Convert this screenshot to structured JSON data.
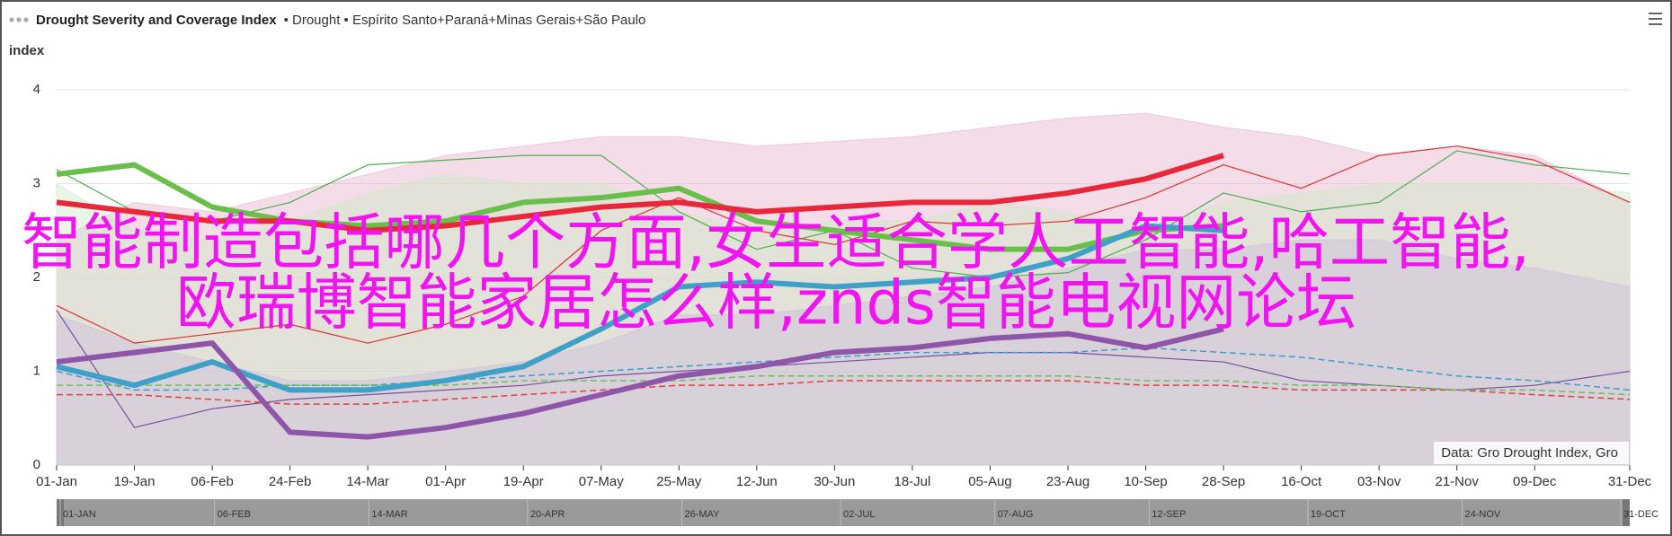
{
  "header": {
    "title": "Drought Severity and Coverage Index",
    "subtitle": "• Drought • Espírito Santo+Paraná+Minas Gerais+São Paulo"
  },
  "overlay": {
    "lines": [
      "智能制造包括哪几个方面,女生适合学人工智能,哈工智能,",
      "欧瑞博智能家居怎么样,znds智能电视网论坛"
    ]
  },
  "chart_data": {
    "type": "line",
    "y_label": "index",
    "credit": "Data: Gro Drought Index, Gro",
    "x": [
      0,
      18,
      36,
      54,
      72,
      90,
      108,
      126,
      144,
      162,
      180,
      198,
      216,
      234,
      252,
      270,
      288,
      306,
      324,
      342,
      364
    ],
    "xlim": [
      0,
      364
    ],
    "xticks": [
      {
        "value": 0,
        "label": "01-Jan"
      },
      {
        "value": 18,
        "label": "19-Jan"
      },
      {
        "value": 36,
        "label": "06-Feb"
      },
      {
        "value": 54,
        "label": "24-Feb"
      },
      {
        "value": 72,
        "label": "14-Mar"
      },
      {
        "value": 90,
        "label": "01-Apr"
      },
      {
        "value": 108,
        "label": "19-Apr"
      },
      {
        "value": 126,
        "label": "07-May"
      },
      {
        "value": 144,
        "label": "25-May"
      },
      {
        "value": 162,
        "label": "12-Jun"
      },
      {
        "value": 180,
        "label": "30-Jun"
      },
      {
        "value": 198,
        "label": "18-Jul"
      },
      {
        "value": 216,
        "label": "05-Aug"
      },
      {
        "value": 234,
        "label": "23-Aug"
      },
      {
        "value": 252,
        "label": "10-Sep"
      },
      {
        "value": 270,
        "label": "28-Sep"
      },
      {
        "value": 288,
        "label": "16-Oct"
      },
      {
        "value": 306,
        "label": "03-Nov"
      },
      {
        "value": 324,
        "label": "21-Nov"
      },
      {
        "value": 342,
        "label": "09-Dec"
      },
      {
        "value": 364,
        "label": "31-Dec"
      }
    ],
    "navigator_ticks": [
      {
        "value": 0,
        "label": "01-JAN"
      },
      {
        "value": 36,
        "label": "06-FEB"
      },
      {
        "value": 72,
        "label": "14-MAR"
      },
      {
        "value": 109,
        "label": "20-APR"
      },
      {
        "value": 145,
        "label": "26-MAY"
      },
      {
        "value": 182,
        "label": "02-JUL"
      },
      {
        "value": 218,
        "label": "07-AUG"
      },
      {
        "value": 254,
        "label": "12-SEP"
      },
      {
        "value": 291,
        "label": "19-OCT"
      },
      {
        "value": 327,
        "label": "24-NOV"
      },
      {
        "value": 364,
        "label": "31-DEC"
      }
    ],
    "ylim": [
      0,
      4
    ],
    "yticks": [
      0,
      1,
      2,
      3,
      4
    ],
    "grid": true,
    "series": [
      {
        "style": "area",
        "color": "#e7b3cc",
        "values": [
          2.4,
          2.8,
          2.7,
          2.9,
          3.1,
          3.3,
          3.4,
          3.5,
          3.5,
          3.4,
          3.45,
          3.5,
          3.6,
          3.7,
          3.75,
          3.6,
          3.5,
          3.3,
          3.4,
          3.3,
          2.8
        ]
      },
      {
        "style": "area",
        "color": "#cfe8c6",
        "values": [
          3.0,
          2.5,
          2.4,
          2.6,
          2.9,
          3.1,
          3.0,
          3.0,
          2.7,
          2.5,
          2.6,
          2.6,
          2.8,
          2.7,
          2.5,
          2.8,
          2.9,
          3.0,
          3.0,
          3.0,
          2.9
        ]
      },
      {
        "style": "area",
        "color": "#c9bcdc",
        "values": [
          1.6,
          1.3,
          1.1,
          0.9,
          0.9,
          1.0,
          1.1,
          1.3,
          1.6,
          1.6,
          1.7,
          1.8,
          1.9,
          2.1,
          2.3,
          2.3,
          2.4,
          2.4,
          2.2,
          2.1,
          1.9
        ]
      },
      {
        "style": "thin",
        "color": "#4caf50",
        "values": [
          3.15,
          2.7,
          2.6,
          2.8,
          3.2,
          3.25,
          3.3,
          3.3,
          2.7,
          2.3,
          2.5,
          2.1,
          2.0,
          2.05,
          2.4,
          2.9,
          2.7,
          2.8,
          3.35,
          3.2,
          3.1
        ]
      },
      {
        "style": "thin",
        "color": "#e03030",
        "values": [
          1.7,
          1.3,
          1.4,
          1.5,
          1.3,
          1.5,
          1.8,
          2.5,
          2.85,
          2.5,
          2.35,
          2.6,
          2.55,
          2.6,
          2.85,
          3.2,
          2.95,
          3.3,
          3.4,
          3.25,
          2.8
        ]
      },
      {
        "style": "thin",
        "color": "#7a4ea0",
        "values": [
          1.65,
          0.4,
          0.6,
          0.7,
          0.75,
          0.8,
          0.85,
          0.95,
          1.0,
          1.05,
          1.1,
          1.15,
          1.2,
          1.2,
          1.15,
          1.1,
          0.9,
          0.85,
          0.8,
          0.85,
          1.0
        ]
      },
      {
        "style": "dashed",
        "color": "#3b9dd0",
        "values": [
          1.0,
          0.8,
          0.8,
          0.85,
          0.85,
          0.9,
          0.95,
          1.0,
          1.05,
          1.1,
          1.15,
          1.2,
          1.2,
          1.2,
          1.25,
          1.2,
          1.15,
          1.05,
          0.95,
          0.9,
          0.8
        ]
      },
      {
        "style": "dashed",
        "color": "#e04040",
        "values": [
          0.75,
          0.75,
          0.7,
          0.65,
          0.65,
          0.7,
          0.75,
          0.8,
          0.85,
          0.85,
          0.9,
          0.9,
          0.9,
          0.9,
          0.85,
          0.85,
          0.8,
          0.8,
          0.8,
          0.75,
          0.7
        ]
      },
      {
        "style": "dashed",
        "color": "#6bbf5a",
        "values": [
          0.85,
          0.85,
          0.85,
          0.85,
          0.85,
          0.85,
          0.9,
          0.9,
          0.9,
          0.95,
          0.95,
          0.95,
          0.95,
          0.95,
          0.9,
          0.9,
          0.85,
          0.85,
          0.8,
          0.8,
          0.75
        ]
      },
      {
        "style": "thick",
        "color": "#6abf4b",
        "values": [
          3.1,
          3.2,
          2.75,
          2.6,
          2.55,
          2.6,
          2.8,
          2.85,
          2.95,
          2.6,
          2.5,
          2.4,
          2.3,
          2.3,
          2.5,
          2.55,
          null,
          null,
          null,
          null,
          null
        ]
      },
      {
        "style": "thick",
        "color": "#3fa0c8",
        "values": [
          1.05,
          0.85,
          1.1,
          0.8,
          0.8,
          0.9,
          1.05,
          1.45,
          1.9,
          1.95,
          1.9,
          1.95,
          2.0,
          2.2,
          2.55,
          2.5,
          null,
          null,
          null,
          null,
          null
        ]
      },
      {
        "style": "thick",
        "color": "#8e55a8",
        "values": [
          1.1,
          1.2,
          1.3,
          0.35,
          0.3,
          0.4,
          0.55,
          0.75,
          0.95,
          1.05,
          1.2,
          1.25,
          1.35,
          1.4,
          1.25,
          1.45,
          null,
          null,
          null,
          null,
          null
        ]
      },
      {
        "style": "thick",
        "color": "#e8283a",
        "values": [
          2.8,
          2.7,
          2.6,
          2.6,
          2.5,
          2.55,
          2.65,
          2.75,
          2.8,
          2.7,
          2.75,
          2.8,
          2.8,
          2.9,
          3.05,
          3.3,
          null,
          null,
          null,
          null,
          null
        ]
      }
    ]
  }
}
